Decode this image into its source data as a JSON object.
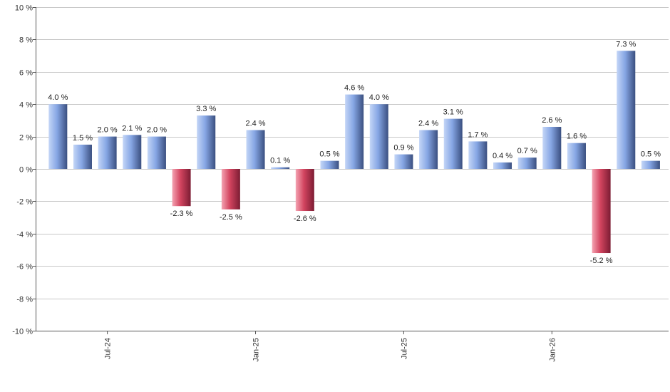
{
  "chart_data": {
    "type": "bar",
    "title": "",
    "xlabel": "",
    "ylabel": "",
    "ylim": [
      -10,
      10
    ],
    "ytick_step": 2,
    "ytick_labels": [
      "-10 %",
      "-8 %",
      "-6 %",
      "-4 %",
      "-2 %",
      "0 %",
      "2 %",
      "4 %",
      "6 %",
      "8 %",
      "10 %"
    ],
    "grid": true,
    "legend": "none",
    "values": [
      4.0,
      1.5,
      2.0,
      2.1,
      2.0,
      -2.3,
      3.3,
      -2.5,
      2.4,
      0.1,
      -2.6,
      0.5,
      4.6,
      4.0,
      0.9,
      2.4,
      3.1,
      1.7,
      0.4,
      0.7,
      2.6,
      1.6,
      -5.2,
      7.3,
      0.5
    ],
    "data_labels": [
      "4.0 %",
      "1.5 %",
      "2.0 %",
      "2.1 %",
      "2.0 %",
      "-2.3 %",
      "3.3 %",
      "-2.5 %",
      "2.4 %",
      "0.1 %",
      "-2.6 %",
      "0.5 %",
      "4.6 %",
      "4.0 %",
      "0.9 %",
      "2.4 %",
      "3.1 %",
      "1.7 %",
      "0.4 %",
      "0.7 %",
      "2.6 %",
      "1.6 %",
      "-5.2 %",
      "7.3 %",
      "0.5 %"
    ],
    "x_ticks": [
      {
        "label": "Jul-24",
        "index": 2
      },
      {
        "label": "Jan-25",
        "index": 8
      },
      {
        "label": "Jul-25",
        "index": 14
      },
      {
        "label": "Jan-26",
        "index": 20
      }
    ],
    "colors": {
      "positive_light": "#a9c3f2",
      "positive_mid": "#7c9fe0",
      "positive_dark": "#34497a",
      "negative_light": "#f2899c",
      "negative_mid": "#d0405c",
      "negative_dark": "#7a1a30"
    }
  }
}
